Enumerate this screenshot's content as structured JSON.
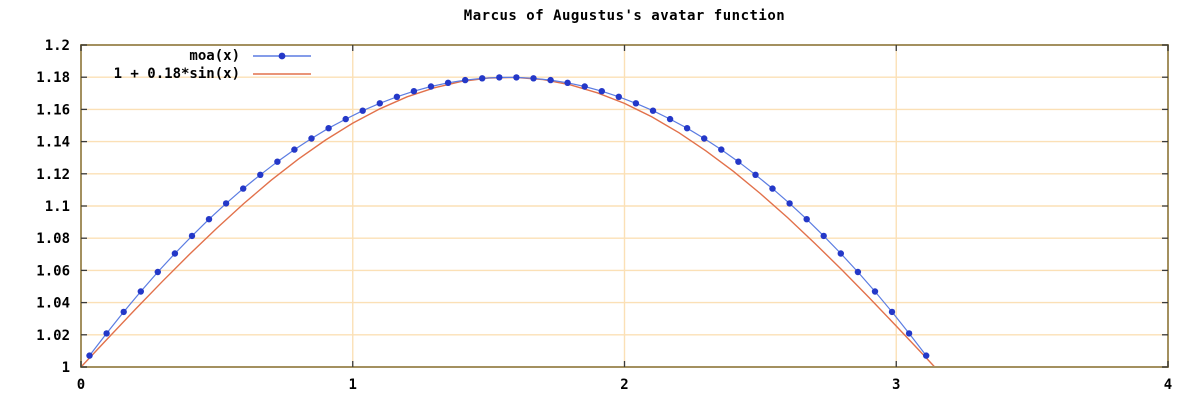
{
  "title": "Marcus of Augustus's avatar function",
  "chart_data": {
    "type": "line",
    "title": "Marcus of Augustus's avatar function",
    "xlabel": "",
    "ylabel": "",
    "xlim": [
      0,
      4
    ],
    "ylim": [
      1,
      1.2
    ],
    "x_ticks": {
      "values": [
        0,
        1,
        2,
        3,
        4
      ],
      "labels": [
        "0",
        "1",
        "2",
        "3",
        "4"
      ]
    },
    "y_ticks": {
      "values": [
        1,
        1.02,
        1.04,
        1.06,
        1.08,
        1.1,
        1.12,
        1.14,
        1.16,
        1.18,
        1.2
      ],
      "labels": [
        "1",
        "1.02",
        "1.04",
        "1.06",
        "1.08",
        "1.1",
        "1.12",
        "1.14",
        "1.16",
        "1.18",
        "1.2"
      ]
    },
    "grid": true,
    "legend_position": "inside-top-left",
    "colors": {
      "grid": "#fbe0b6",
      "border": "#a3905f",
      "tick": "#3a3a3a",
      "text": "#000000",
      "background": "#ffffff"
    },
    "series": [
      {
        "name": "moa(x)",
        "style": "linespoints",
        "line_color": "#5b7ce2",
        "point_color": "#2438c8",
        "points": [
          [
            0.0314,
            1.0071
          ],
          [
            0.0942,
            1.0209
          ],
          [
            0.1571,
            1.0342
          ],
          [
            0.2199,
            1.0469
          ],
          [
            0.2827,
            1.059
          ],
          [
            0.3456,
            1.0705
          ],
          [
            0.4084,
            1.0814
          ],
          [
            0.4712,
            1.0918
          ],
          [
            0.5341,
            1.1016
          ],
          [
            0.5969,
            1.1108
          ],
          [
            0.6597,
            1.1194
          ],
          [
            0.7226,
            1.1275
          ],
          [
            0.7854,
            1.135
          ],
          [
            0.8482,
            1.1419
          ],
          [
            0.9111,
            1.1483
          ],
          [
            0.9739,
            1.154
          ],
          [
            1.0367,
            1.1592
          ],
          [
            1.0996,
            1.1638
          ],
          [
            1.1624,
            1.1678
          ],
          [
            1.2252,
            1.1713
          ],
          [
            1.2881,
            1.1742
          ],
          [
            1.3509,
            1.1765
          ],
          [
            1.4137,
            1.1782
          ],
          [
            1.4765,
            1.1793
          ],
          [
            1.5394,
            1.1799
          ],
          [
            1.6022,
            1.1799
          ],
          [
            1.6651,
            1.1793
          ],
          [
            1.7279,
            1.1782
          ],
          [
            1.7907,
            1.1765
          ],
          [
            1.8535,
            1.1742
          ],
          [
            1.9164,
            1.1713
          ],
          [
            1.9792,
            1.1678
          ],
          [
            2.042,
            1.1638
          ],
          [
            2.1049,
            1.1592
          ],
          [
            2.1677,
            1.154
          ],
          [
            2.2305,
            1.1483
          ],
          [
            2.2934,
            1.1419
          ],
          [
            2.3562,
            1.135
          ],
          [
            2.419,
            1.1275
          ],
          [
            2.4819,
            1.1194
          ],
          [
            2.5447,
            1.1108
          ],
          [
            2.6075,
            1.1016
          ],
          [
            2.6704,
            1.0918
          ],
          [
            2.7332,
            1.0814
          ],
          [
            2.796,
            1.0705
          ],
          [
            2.8589,
            1.059
          ],
          [
            2.9217,
            1.0469
          ],
          [
            2.9845,
            1.0342
          ],
          [
            3.0474,
            1.0209
          ],
          [
            3.1102,
            1.0071
          ]
        ]
      },
      {
        "name": "1 + 0.18*sin(x)",
        "style": "line",
        "line_color": "#e2714b",
        "points": [
          [
            0.0,
            1.0
          ],
          [
            0.1,
            1.018
          ],
          [
            0.2,
            1.0358
          ],
          [
            0.3,
            1.0532
          ],
          [
            0.4,
            1.0701
          ],
          [
            0.5,
            1.0863
          ],
          [
            0.6,
            1.1016
          ],
          [
            0.7,
            1.116
          ],
          [
            0.8,
            1.1291
          ],
          [
            0.9,
            1.141
          ],
          [
            1.0,
            1.1515
          ],
          [
            1.1,
            1.1604
          ],
          [
            1.2,
            1.1678
          ],
          [
            1.3,
            1.1734
          ],
          [
            1.4,
            1.1774
          ],
          [
            1.5,
            1.1795
          ],
          [
            1.6,
            1.1799
          ],
          [
            1.7,
            1.1785
          ],
          [
            1.8,
            1.1753
          ],
          [
            1.9,
            1.1703
          ],
          [
            2.0,
            1.1637
          ],
          [
            2.1,
            1.1554
          ],
          [
            2.2,
            1.1455
          ],
          [
            2.3,
            1.1342
          ],
          [
            2.4,
            1.1216
          ],
          [
            2.5,
            1.1077
          ],
          [
            2.6,
            1.0928
          ],
          [
            2.7,
            1.0769
          ],
          [
            2.8,
            1.0603
          ],
          [
            2.9,
            1.0431
          ],
          [
            3.0,
            1.0254
          ],
          [
            3.1,
            1.0075
          ],
          [
            3.1416,
            1.0
          ]
        ]
      }
    ]
  }
}
